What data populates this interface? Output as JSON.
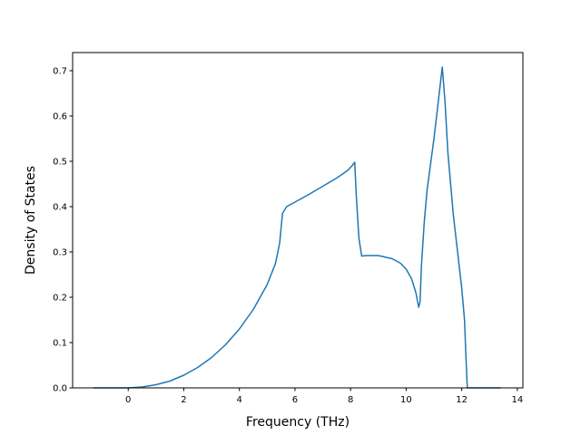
{
  "chart_data": {
    "type": "line",
    "title": "",
    "xlabel": "Frequency (THz)",
    "ylabel": "Density of States",
    "xlim": [
      -2.0,
      14.2
    ],
    "ylim": [
      0.0,
      0.74
    ],
    "grid": false,
    "x_ticks": [
      0,
      2,
      4,
      6,
      8,
      10,
      12,
      14
    ],
    "y_ticks": [
      0.0,
      0.1,
      0.2,
      0.3,
      0.4,
      0.5,
      0.6,
      0.7
    ],
    "x_tick_labels": [
      "0",
      "2",
      "4",
      "6",
      "8",
      "10",
      "12",
      "14"
    ],
    "y_tick_labels": [
      "0.0",
      "0.1",
      "0.2",
      "0.3",
      "0.4",
      "0.5",
      "0.6",
      "0.7"
    ],
    "series": [
      {
        "color": "#1f77b4",
        "x": [
          -1.25,
          -0.5,
          0.0,
          0.5,
          1.0,
          1.5,
          2.0,
          2.5,
          3.0,
          3.5,
          4.0,
          4.5,
          5.0,
          5.3,
          5.45,
          5.55,
          5.7,
          6.0,
          6.5,
          7.0,
          7.5,
          7.9,
          8.05,
          8.15,
          8.2,
          8.3,
          8.4,
          8.6,
          9.0,
          9.5,
          9.8,
          10.0,
          10.2,
          10.35,
          10.45,
          10.5,
          10.55,
          10.65,
          10.75,
          11.0,
          11.3,
          11.4,
          11.5,
          11.7,
          12.0,
          12.1,
          12.15,
          12.2,
          12.5,
          13.0,
          13.4
        ],
        "y": [
          0.0,
          0.0,
          0.0,
          0.002,
          0.007,
          0.015,
          0.028,
          0.045,
          0.067,
          0.095,
          0.13,
          0.173,
          0.228,
          0.275,
          0.32,
          0.385,
          0.4,
          0.41,
          0.427,
          0.445,
          0.463,
          0.48,
          0.49,
          0.498,
          0.43,
          0.33,
          0.291,
          0.292,
          0.292,
          0.285,
          0.275,
          0.262,
          0.24,
          0.21,
          0.178,
          0.19,
          0.27,
          0.365,
          0.435,
          0.55,
          0.708,
          0.63,
          0.52,
          0.38,
          0.22,
          0.15,
          0.07,
          0.0,
          0.0,
          0.0,
          0.0
        ]
      }
    ]
  }
}
